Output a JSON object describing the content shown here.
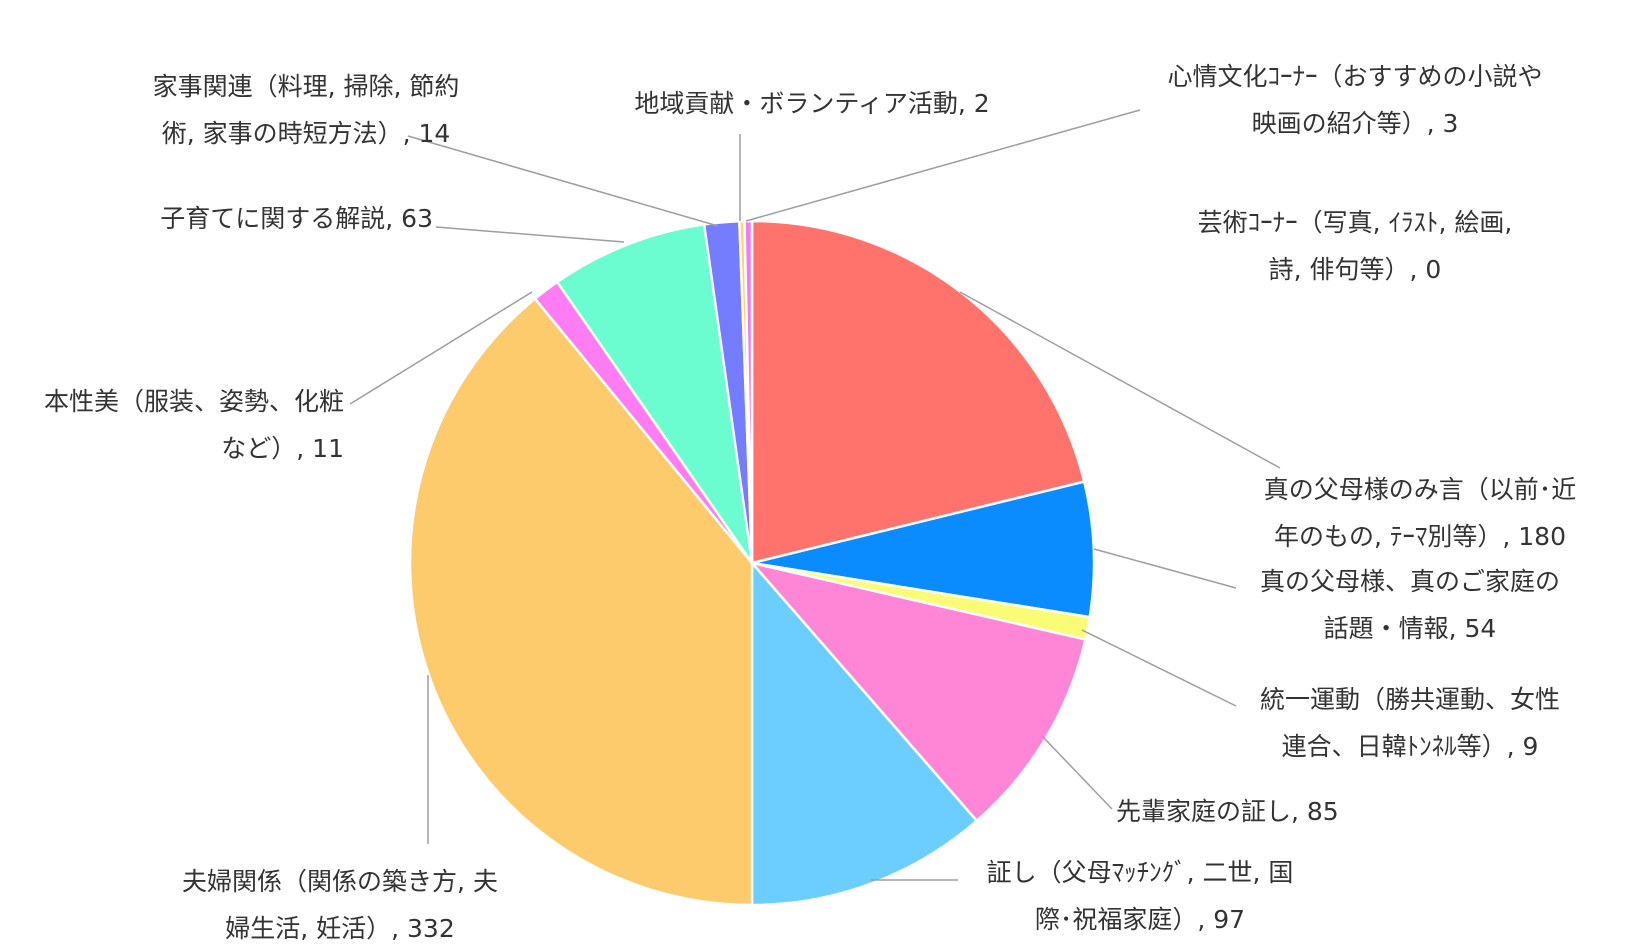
{
  "chart_data": {
    "type": "pie",
    "title": "",
    "start_angle_deg": 0,
    "direction": "clockwise",
    "slices": [
      {
        "line1": "真の父母様のみ言（以前･近",
        "line2": "年のもの, ﾃｰﾏ別等）, 180",
        "label": "真の父母様のみ言（以前･近年のもの, ﾃｰﾏ別等）",
        "value": 180,
        "color": "#ff736c"
      },
      {
        "line1": "真の父母様、真のご家庭の",
        "line2": "話題・情報, 54",
        "label": "真の父母様、真のご家庭の話題・情報",
        "value": 54,
        "color": "#0a8cff"
      },
      {
        "line1": "統一運動（勝共運動、女性",
        "line2": "連合、日韓ﾄﾝﾈﾙ等）, 9",
        "label": "統一運動（勝共運動、女性連合、日韓ﾄﾝﾈﾙ等）",
        "value": 9,
        "color": "#fbfc76"
      },
      {
        "line1": "先輩家庭の証し, 85",
        "line2": "",
        "label": "先輩家庭の証し",
        "value": 85,
        "color": "#ff85d6"
      },
      {
        "line1": "証し（父母ﾏｯﾁﾝｸﾞ, 二世, 国",
        "line2": "際･祝福家庭）, 97",
        "label": "証し（父母ﾏｯﾁﾝｸﾞ, 二世, 国際･祝福家庭）",
        "value": 97,
        "color": "#6ccefe"
      },
      {
        "line1": "夫婦関係（関係の築き方, 夫",
        "line2": "婦生活, 妊活）, 332",
        "label": "夫婦関係（関係の築き方, 夫婦生活, 妊活）",
        "value": 332,
        "color": "#fdcb6c"
      },
      {
        "line1": "本性美（服装、姿勢、化粧",
        "line2": "など）, 11",
        "label": "本性美（服装、姿勢、化粧など）",
        "value": 11,
        "color": "#ff7cf2"
      },
      {
        "line1": "子育てに関する解説, 63",
        "line2": "",
        "label": "子育てに関する解説",
        "value": 63,
        "color": "#6bfdd0"
      },
      {
        "line1": "家事関連（料理, 掃除, 節約",
        "line2": "術, 家事の時短方法）, 14",
        "label": "家事関連（料理, 掃除, 節約術, 家事の時短方法）",
        "value": 14,
        "color": "#747cff"
      },
      {
        "line1": "地域貢献・ボランティア活動, 2",
        "line2": "",
        "label": "地域貢献・ボランティア活動",
        "value": 2,
        "color": "#fcd36e"
      },
      {
        "line1": "心情文化ｺｰﾅｰ（おすすめの小説や",
        "line2": "映画の紹介等）, 3",
        "label": "心情文化ｺｰﾅｰ（おすすめの小説や映画の紹介等）",
        "value": 3,
        "color": "#e97ef5"
      },
      {
        "line1": "芸術ｺｰﾅｰ（写真, ｲﾗｽﾄ, 絵画,",
        "line2": "詩, 俳句等）, 0",
        "label": "芸術ｺｰﾅｰ（写真, ｲﾗｽﾄ, 絵画, 詩, 俳句等）",
        "value": 0,
        "color": "#8d8dff"
      }
    ]
  }
}
